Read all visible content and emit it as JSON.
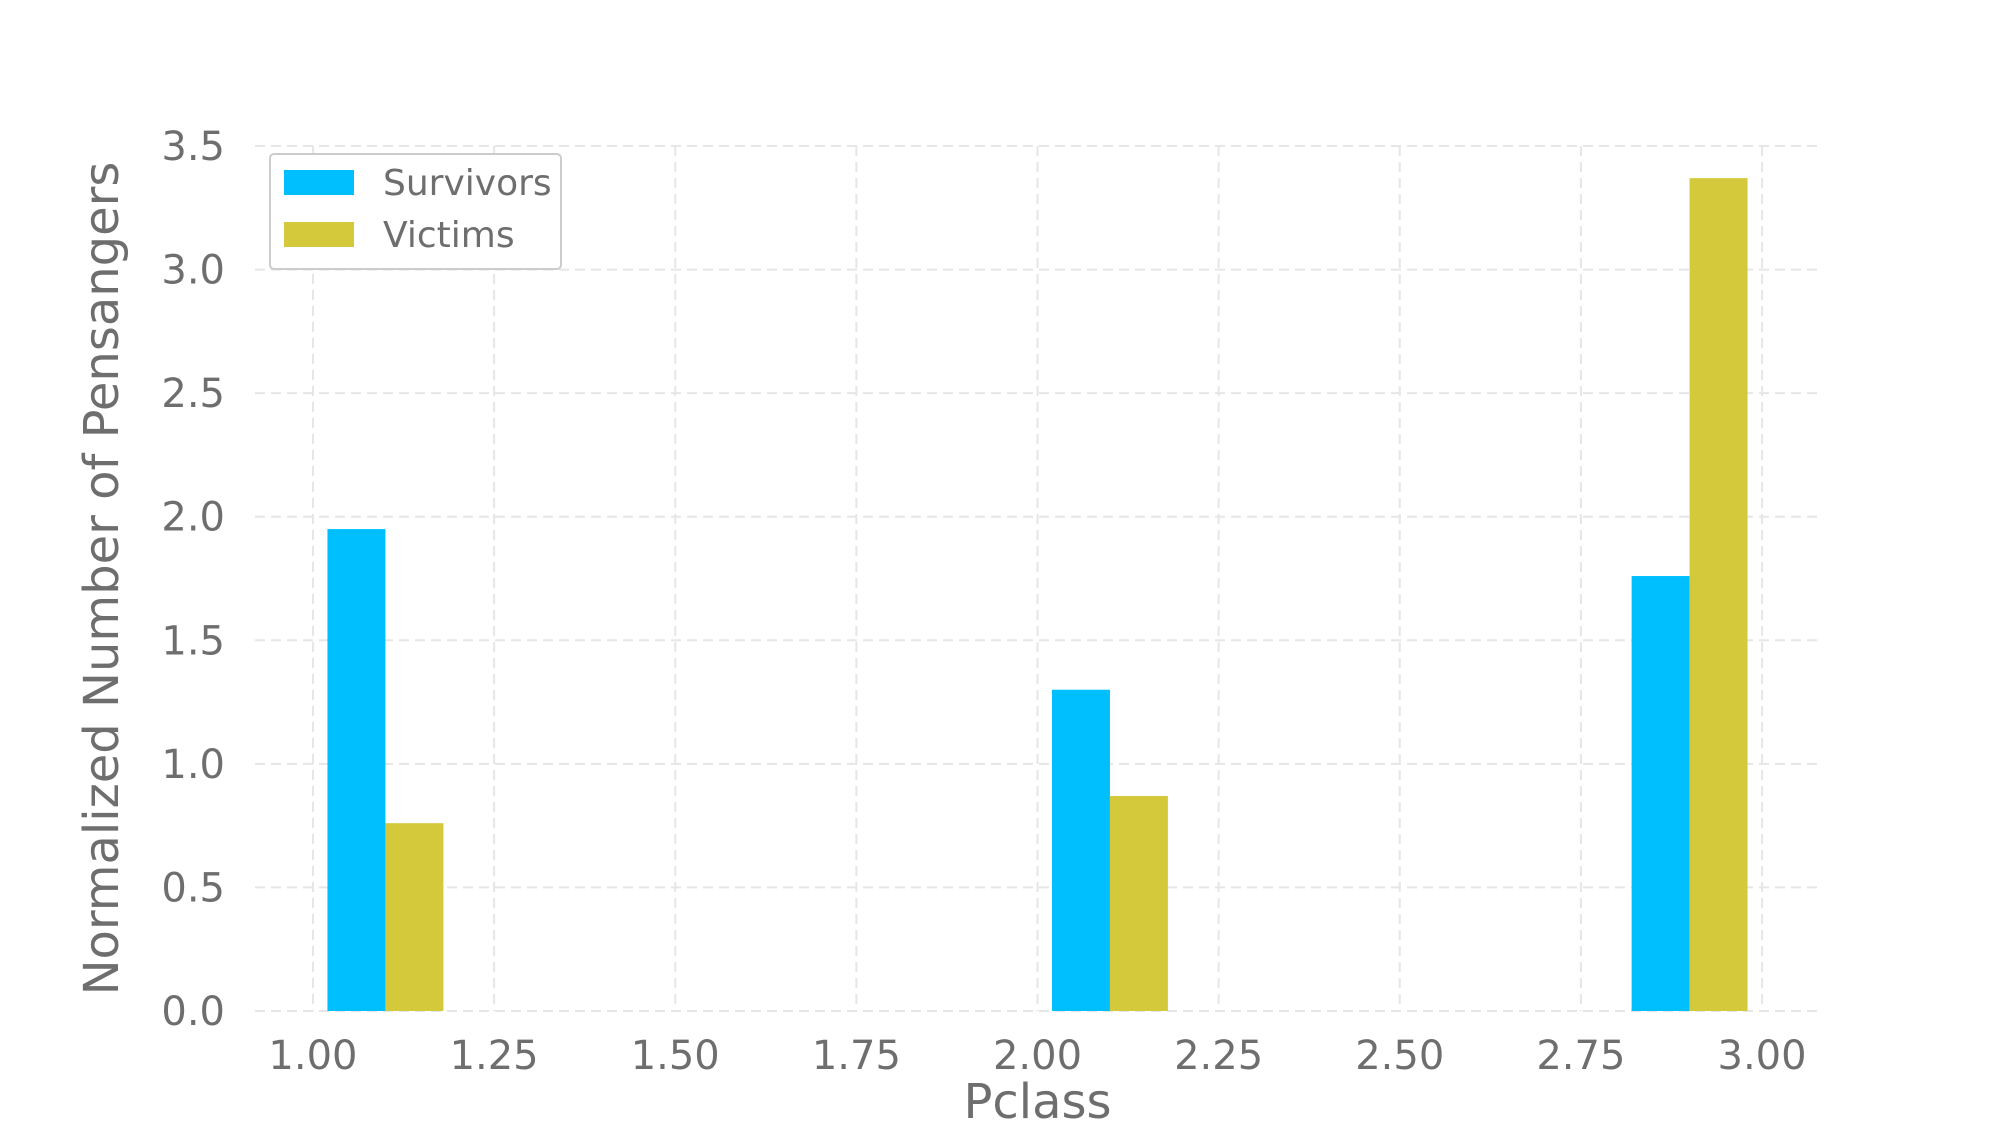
{
  "chart_data": {
    "type": "bar",
    "title": "",
    "xlabel": "Pclass",
    "ylabel": "Normalized Number of Pensangers",
    "xlim": [
      0.92,
      3.08
    ],
    "ylim": [
      0,
      3.5
    ],
    "xticks": [
      "1.00",
      "1.25",
      "1.50",
      "1.75",
      "2.00",
      "2.25",
      "2.50",
      "2.75",
      "3.00"
    ],
    "yticks": [
      "0.0",
      "0.5",
      "1.0",
      "1.5",
      "2.0",
      "2.5",
      "3.0",
      "3.5"
    ],
    "grid": true,
    "legend_position": "top-left",
    "bin_edges": [
      1.02,
      1.18,
      2.02,
      2.18,
      2.82,
      2.98
    ],
    "series": [
      {
        "name": "Survivors",
        "color": "#00bfff",
        "bars": [
          {
            "x0": 1.02,
            "x1": 1.1,
            "value": 1.95
          },
          {
            "x0": 2.02,
            "x1": 2.1,
            "value": 1.3
          },
          {
            "x0": 2.82,
            "x1": 2.9,
            "value": 1.76
          }
        ]
      },
      {
        "name": "Victims",
        "color": "#d4c93a",
        "bars": [
          {
            "x0": 1.1,
            "x1": 1.18,
            "value": 0.76
          },
          {
            "x0": 2.1,
            "x1": 2.18,
            "value": 0.87
          },
          {
            "x0": 2.9,
            "x1": 2.98,
            "value": 3.37
          }
        ]
      }
    ]
  }
}
